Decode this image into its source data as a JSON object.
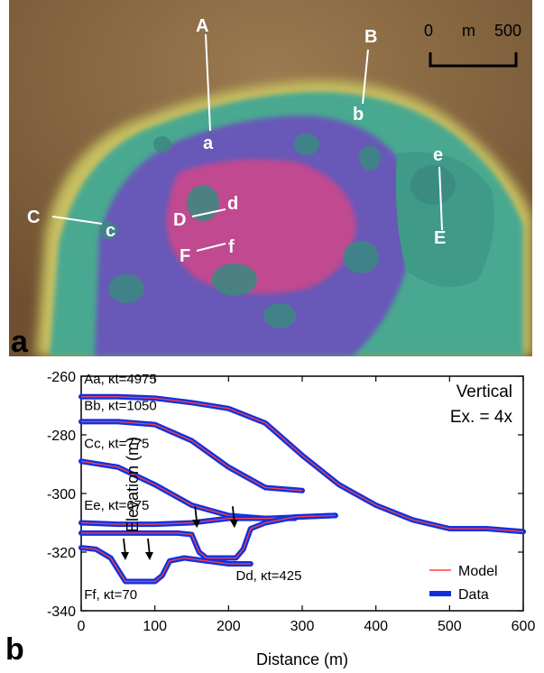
{
  "panel_a": {
    "label": "a",
    "scale_bar": {
      "zero": "0",
      "unit": "m",
      "max": "500"
    },
    "profile_labels": [
      {
        "start": "A",
        "end": "a"
      },
      {
        "start": "B",
        "end": "b"
      },
      {
        "start": "C",
        "end": "c"
      },
      {
        "start": "D",
        "end": "d"
      },
      {
        "start": "E",
        "end": "e"
      },
      {
        "start": "F",
        "end": "f"
      }
    ],
    "colors": {
      "terrain": "#8a6a42",
      "rim": "#c8c060",
      "outer": "#4aa890",
      "mid": "#6858b8",
      "center": "#c04890"
    }
  },
  "panel_b": {
    "label": "b",
    "annotation": [
      "Vertical",
      "Ex. = 4x"
    ]
  },
  "chart_data": {
    "type": "line",
    "xlabel": "Distance (m)",
    "ylabel": "Elevation (m)",
    "xlim": [
      0,
      600
    ],
    "ylim": [
      -340,
      -260
    ],
    "xticks": [
      "0",
      "100",
      "200",
      "300",
      "400",
      "500",
      "600"
    ],
    "yticks": [
      "-260",
      "-280",
      "-300",
      "-320",
      "-340"
    ],
    "legend": {
      "position": "bottom-right",
      "entries": [
        "Model",
        "Data"
      ]
    },
    "series_colors": {
      "model": "#ff4040",
      "data": "#1030e0"
    },
    "profiles": [
      {
        "label": "Aa, κt=4975",
        "x": [
          0,
          50,
          100,
          150,
          200,
          250,
          300,
          350,
          400,
          450,
          500,
          550,
          600
        ],
        "y": [
          -267,
          -267,
          -267.5,
          -269,
          -271,
          -276,
          -287,
          -297,
          -304,
          -309,
          -312,
          -312,
          -313
        ]
      },
      {
        "label": "Bb, κt=1050",
        "x": [
          0,
          50,
          100,
          150,
          200,
          250,
          300
        ],
        "y": [
          -275.5,
          -275.5,
          -276.5,
          -282,
          -291,
          -298,
          -299
        ]
      },
      {
        "label": "Cc, κt=775",
        "x": [
          0,
          50,
          100,
          150,
          200,
          250,
          290
        ],
        "y": [
          -289,
          -291,
          -297,
          -304,
          -307.5,
          -308.5,
          -308.5
        ]
      },
      {
        "label": "Ee, κt=675",
        "x": [
          0,
          50,
          100,
          150,
          200,
          250,
          300,
          345
        ],
        "y": [
          -310,
          -310.5,
          -310.5,
          -310,
          -308.5,
          -308.5,
          -308,
          -307.5
        ]
      },
      {
        "label": "Dd, κt=425",
        "x": [
          0,
          50,
          100,
          130,
          150,
          160,
          170,
          190,
          210,
          220,
          230,
          250,
          290,
          345
        ],
        "y": [
          -313.5,
          -313.5,
          -313.5,
          -313.5,
          -314,
          -320,
          -322,
          -322,
          -322,
          -319,
          -312,
          -310,
          -308,
          -307.5
        ]
      },
      {
        "label": "Ff, κt=70",
        "x": [
          0,
          20,
          40,
          50,
          60,
          80,
          100,
          110,
          120,
          140,
          170,
          200,
          230
        ],
        "y": [
          -318.5,
          -319,
          -322,
          -326,
          -330,
          -330,
          -330,
          -328,
          -323,
          -322,
          -323,
          -324,
          -324
        ]
      }
    ],
    "arrows": [
      {
        "x": 157,
        "y": -313
      },
      {
        "x": 208,
        "y": -313
      },
      {
        "x": 60,
        "y": -324
      },
      {
        "x": 93,
        "y": -324
      }
    ]
  }
}
